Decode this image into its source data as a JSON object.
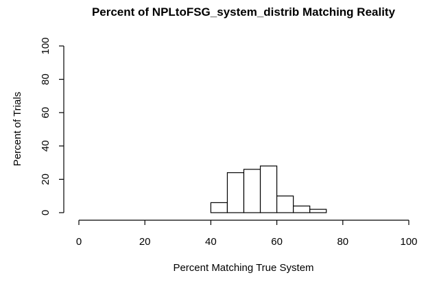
{
  "chart_data": {
    "type": "bar",
    "title": "Percent of NPLtoFSG_system_distrib Matching Reality",
    "xlabel": "Percent Matching True System",
    "ylabel": "Percent of Trials",
    "xlim": [
      0,
      100
    ],
    "ylim": [
      0,
      100
    ],
    "x_ticks": [
      "0",
      "20",
      "40",
      "60",
      "80",
      "100"
    ],
    "y_ticks": [
      "0",
      "20",
      "40",
      "60",
      "80",
      "100"
    ],
    "bin_edges": [
      40,
      45,
      50,
      55,
      60,
      65,
      70,
      75
    ],
    "values": [
      6,
      24,
      26,
      28,
      10,
      4,
      2
    ],
    "grid": false,
    "colors": {
      "bar_fill": "#ffffff",
      "bar_stroke": "#000000",
      "axis": "#000000",
      "background": "#ffffff"
    }
  }
}
